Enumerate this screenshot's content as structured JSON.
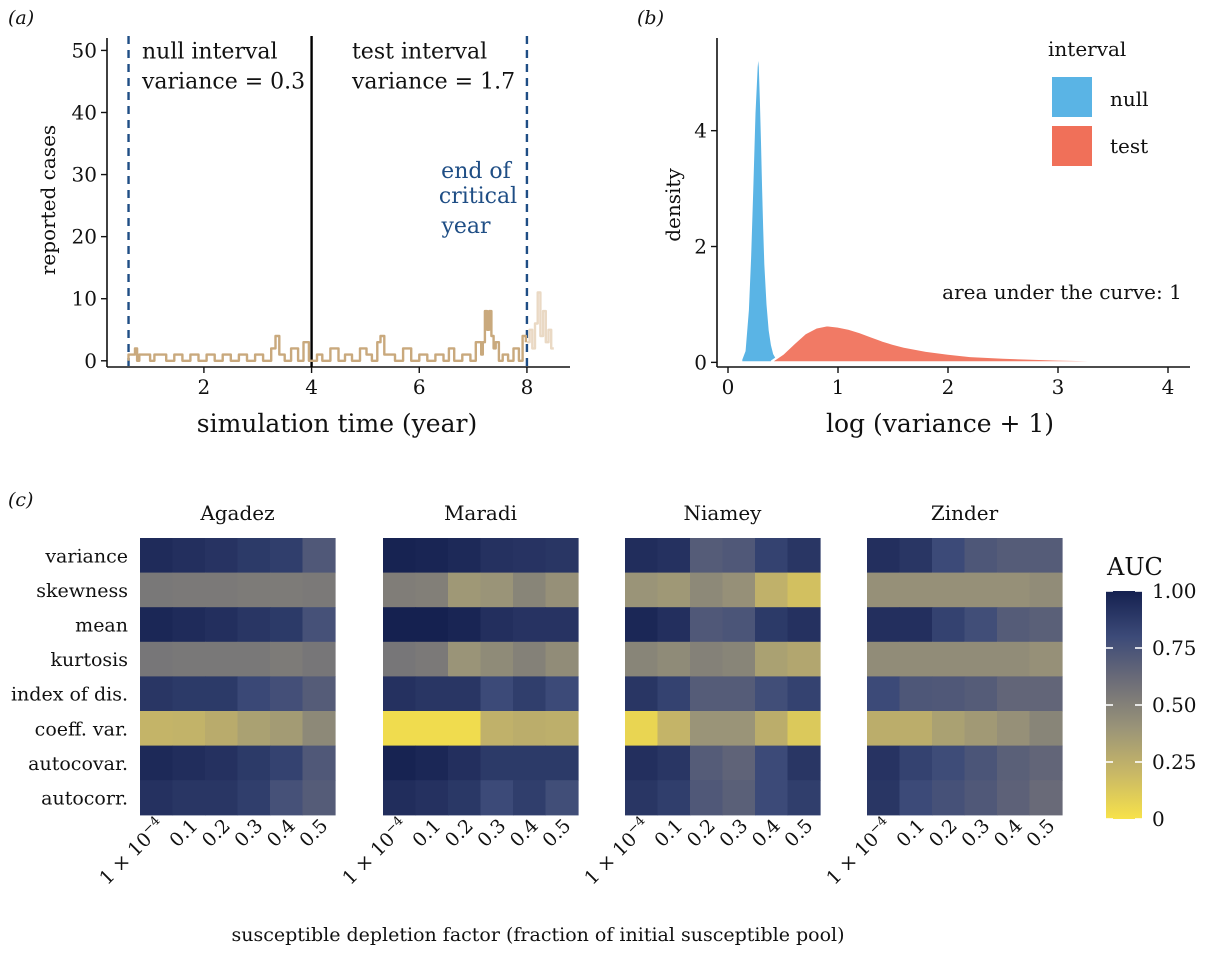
{
  "colors": {
    "cases": "#c9a97d",
    "cases_faded": "#ead9c4",
    "critical_line": "#1f4e85",
    "null": "#5ab4e5",
    "test": "#f07059",
    "heat_scale": [
      "#f7e24a",
      "#c9b866",
      "#9a9478",
      "#6e6e78",
      "#3c4a78",
      "#152150"
    ]
  },
  "chart_data": [
    {
      "id": "a",
      "type": "line",
      "panel_label": "(a)",
      "xlabel": "simulation time (year)",
      "ylabel": "reported cases",
      "xlim": [
        0.2,
        8.8
      ],
      "ylim": [
        -1,
        52
      ],
      "xticks": [
        2,
        4,
        6,
        8
      ],
      "yticks": [
        0,
        10,
        20,
        30,
        40,
        50
      ],
      "vlines": [
        {
          "x": 0.6,
          "style": "dashed",
          "color": "critical_line"
        },
        {
          "x": 4.0,
          "style": "solid",
          "color": "black"
        },
        {
          "x": 8.0,
          "style": "dashed",
          "color": "critical_line"
        }
      ],
      "annotations": [
        {
          "line1": "null interval",
          "line2": "variance = 0.3",
          "x": 0.85,
          "y": 50
        },
        {
          "line1": "test interval",
          "line2": "variance = 1.7",
          "x": 4.75,
          "y": 50
        }
      ],
      "critical_label": [
        "end of",
        "critical",
        "year"
      ],
      "series": [
        {
          "name": "",
          "x": [
            0.6,
            0.6,
            0.72,
            0.72,
            0.76,
            0.76,
            0.8,
            0.8,
            1.0,
            1.0,
            1.08,
            1.08,
            1.3,
            1.3,
            1.45,
            1.45,
            1.6,
            1.6,
            1.75,
            1.75,
            1.9,
            1.9,
            2.05,
            2.05,
            2.2,
            2.2,
            2.35,
            2.35,
            2.5,
            2.5,
            2.65,
            2.65,
            2.8,
            2.8,
            2.95,
            2.95,
            3.1,
            3.1,
            3.25,
            3.25,
            3.33,
            3.33,
            3.4,
            3.4,
            3.5,
            3.5,
            3.62,
            3.62,
            3.75,
            3.75,
            3.85,
            3.85,
            3.95,
            3.95,
            4.1,
            4.1,
            4.2,
            4.2,
            4.35,
            4.35,
            4.5,
            4.5,
            4.62,
            4.62,
            4.75,
            4.75,
            4.9,
            4.9,
            5.02,
            5.02,
            5.12,
            5.12,
            5.22,
            5.22,
            5.28,
            5.28,
            5.35,
            5.35,
            5.55,
            5.55,
            5.7,
            5.7,
            5.85,
            5.85,
            6.0,
            6.0,
            6.15,
            6.15,
            6.3,
            6.3,
            6.45,
            6.45,
            6.55,
            6.55,
            6.65,
            6.65,
            6.8,
            6.8,
            6.95,
            6.95,
            7.05,
            7.05,
            7.15,
            7.15,
            7.18,
            7.18,
            7.22,
            7.22,
            7.26,
            7.26,
            7.3,
            7.3,
            7.34,
            7.34,
            7.38,
            7.38,
            7.42,
            7.42,
            7.48,
            7.48,
            7.55,
            7.55,
            7.65,
            7.65,
            7.75,
            7.75,
            7.85,
            7.85,
            7.92,
            7.92,
            7.98,
            7.98
          ],
          "y": [
            0,
            1,
            1,
            2,
            2,
            0,
            0,
            1,
            1,
            0,
            0,
            1,
            1,
            0,
            0,
            1,
            1,
            0,
            0,
            1,
            1,
            0,
            0,
            1,
            1,
            0,
            0,
            1,
            1,
            0,
            0,
            1,
            1,
            0,
            0,
            1,
            1,
            0,
            0,
            2,
            2,
            4,
            4,
            1,
            1,
            0,
            0,
            2,
            2,
            0,
            0,
            3,
            3,
            0,
            0,
            1,
            1,
            0,
            0,
            2,
            2,
            0,
            0,
            1,
            1,
            0,
            0,
            2,
            2,
            1,
            1,
            0,
            0,
            3,
            3,
            4,
            4,
            1,
            1,
            0,
            0,
            2,
            2,
            0,
            0,
            1,
            1,
            0,
            0,
            1,
            1,
            0,
            0,
            2,
            2,
            0,
            0,
            1,
            1,
            0,
            0,
            3,
            3,
            1,
            1,
            3,
            3,
            8,
            8,
            5,
            5,
            8,
            8,
            4,
            4,
            2,
            2,
            3,
            3,
            0,
            0,
            1,
            1,
            0,
            0,
            2,
            2,
            0,
            0,
            4,
            4,
            3
          ]
        },
        {
          "name": "",
          "x": [
            8.0,
            8.05,
            8.05,
            8.1,
            8.1,
            8.15,
            8.15,
            8.2,
            8.2,
            8.25,
            8.25,
            8.3,
            8.3,
            8.35,
            8.35,
            8.4,
            8.4,
            8.45,
            8.45,
            8.5
          ],
          "y": [
            3,
            3,
            5,
            5,
            2,
            2,
            6,
            6,
            11,
            11,
            4,
            4,
            8,
            8,
            3,
            3,
            5,
            5,
            2,
            2
          ]
        }
      ]
    },
    {
      "id": "b",
      "type": "area",
      "panel_label": "(b)",
      "xlabel": "log (variance + 1)",
      "ylabel": "density",
      "xlim": [
        -0.1,
        4.2
      ],
      "ylim": [
        -0.08,
        5.6
      ],
      "xticks": [
        0,
        1,
        2,
        3,
        4
      ],
      "yticks": [
        0,
        2,
        4
      ],
      "legend_title": "interval",
      "legend_position": "top-right",
      "auc_text": "area under the curve: 1",
      "series": [
        {
          "name": "null",
          "color": "null",
          "x": [
            0.12,
            0.15,
            0.18,
            0.2,
            0.22,
            0.24,
            0.26,
            0.27,
            0.28,
            0.29,
            0.3,
            0.31,
            0.32,
            0.33,
            0.34,
            0.36,
            0.38,
            0.4,
            0.42,
            0.45
          ],
          "y": [
            0.05,
            0.2,
            0.9,
            1.8,
            3.0,
            4.3,
            5.1,
            5.32,
            5.3,
            5.1,
            4.5,
            3.8,
            3.0,
            2.3,
            1.7,
            1.0,
            0.55,
            0.3,
            0.15,
            0.05
          ]
        },
        {
          "name": "test",
          "color": "test",
          "x": [
            0.4,
            0.5,
            0.6,
            0.7,
            0.8,
            0.9,
            1.0,
            1.1,
            1.2,
            1.3,
            1.4,
            1.5,
            1.6,
            1.8,
            2.0,
            2.2,
            2.5,
            3.0,
            3.5,
            4.2
          ],
          "y": [
            0.02,
            0.15,
            0.33,
            0.5,
            0.6,
            0.64,
            0.62,
            0.58,
            0.52,
            0.45,
            0.38,
            0.32,
            0.27,
            0.2,
            0.15,
            0.11,
            0.08,
            0.05,
            0.03,
            0.01
          ]
        }
      ]
    },
    {
      "id": "c",
      "type": "heatmap",
      "panel_label": "(c)",
      "xlabel": "susceptible depletion factor (fraction of initial susceptible pool)",
      "x_categories": [
        "1 × 10",
        "0.1",
        "0.2",
        "0.3",
        "0.4",
        "0.5"
      ],
      "first_tick_exponent": "−4",
      "rows": [
        "variance",
        "skewness",
        "mean",
        "kurtosis",
        "index of dis.",
        "coeff. var.",
        "autocovar.",
        "autocorr."
      ],
      "colorbar": {
        "title": "AUC",
        "ticks": [
          "1.00",
          "0.75",
          "0.50",
          "0.25",
          "0"
        ],
        "values": [
          1.0,
          0.75,
          0.5,
          0.25,
          0.0
        ],
        "range": [
          0,
          1
        ]
      },
      "facets": [
        {
          "name": "Agadez",
          "values": [
            [
              0.95,
              0.93,
              0.91,
              0.88,
              0.86,
              0.72
            ],
            [
              0.55,
              0.54,
              0.54,
              0.53,
              0.53,
              0.54
            ],
            [
              0.97,
              0.95,
              0.93,
              0.9,
              0.88,
              0.76
            ],
            [
              0.56,
              0.55,
              0.55,
              0.55,
              0.53,
              0.56
            ],
            [
              0.9,
              0.88,
              0.88,
              0.81,
              0.77,
              0.7
            ],
            [
              0.22,
              0.23,
              0.27,
              0.33,
              0.36,
              0.46
            ],
            [
              0.96,
              0.94,
              0.92,
              0.88,
              0.84,
              0.72
            ],
            [
              0.92,
              0.9,
              0.9,
              0.86,
              0.76,
              0.7
            ]
          ]
        },
        {
          "name": "Maradi",
          "values": [
            [
              0.99,
              0.98,
              0.96,
              0.92,
              0.91,
              0.9
            ],
            [
              0.52,
              0.51,
              0.38,
              0.4,
              0.48,
              0.42
            ],
            [
              1.0,
              1.0,
              0.98,
              0.93,
              0.91,
              0.91
            ],
            [
              0.56,
              0.54,
              0.4,
              0.45,
              0.5,
              0.44
            ],
            [
              0.92,
              0.9,
              0.9,
              0.8,
              0.86,
              0.8
            ],
            [
              0.03,
              0.03,
              0.03,
              0.24,
              0.26,
              0.25
            ],
            [
              0.99,
              0.97,
              0.93,
              0.88,
              0.88,
              0.88
            ],
            [
              0.94,
              0.92,
              0.89,
              0.8,
              0.86,
              0.78
            ]
          ]
        },
        {
          "name": "Niamey",
          "values": [
            [
              0.94,
              0.92,
              0.7,
              0.72,
              0.84,
              0.9
            ],
            [
              0.4,
              0.38,
              0.46,
              0.42,
              0.24,
              0.16
            ],
            [
              0.97,
              0.93,
              0.72,
              0.74,
              0.88,
              0.92
            ],
            [
              0.48,
              0.45,
              0.5,
              0.48,
              0.33,
              0.3
            ],
            [
              0.9,
              0.84,
              0.7,
              0.7,
              0.78,
              0.84
            ],
            [
              0.06,
              0.22,
              0.4,
              0.4,
              0.26,
              0.12
            ],
            [
              0.93,
              0.9,
              0.7,
              0.66,
              0.8,
              0.9
            ],
            [
              0.9,
              0.86,
              0.72,
              0.68,
              0.8,
              0.86
            ]
          ]
        },
        {
          "name": "Zinder",
          "values": [
            [
              0.93,
              0.9,
              0.8,
              0.73,
              0.7,
              0.7
            ],
            [
              0.42,
              0.42,
              0.42,
              0.42,
              0.42,
              0.44
            ],
            [
              0.93,
              0.93,
              0.84,
              0.78,
              0.7,
              0.68
            ],
            [
              0.44,
              0.44,
              0.44,
              0.44,
              0.44,
              0.42
            ],
            [
              0.8,
              0.73,
              0.72,
              0.7,
              0.65,
              0.65
            ],
            [
              0.26,
              0.26,
              0.33,
              0.37,
              0.42,
              0.48
            ],
            [
              0.91,
              0.84,
              0.79,
              0.74,
              0.68,
              0.65
            ],
            [
              0.9,
              0.8,
              0.76,
              0.72,
              0.67,
              0.62
            ]
          ]
        }
      ]
    }
  ]
}
